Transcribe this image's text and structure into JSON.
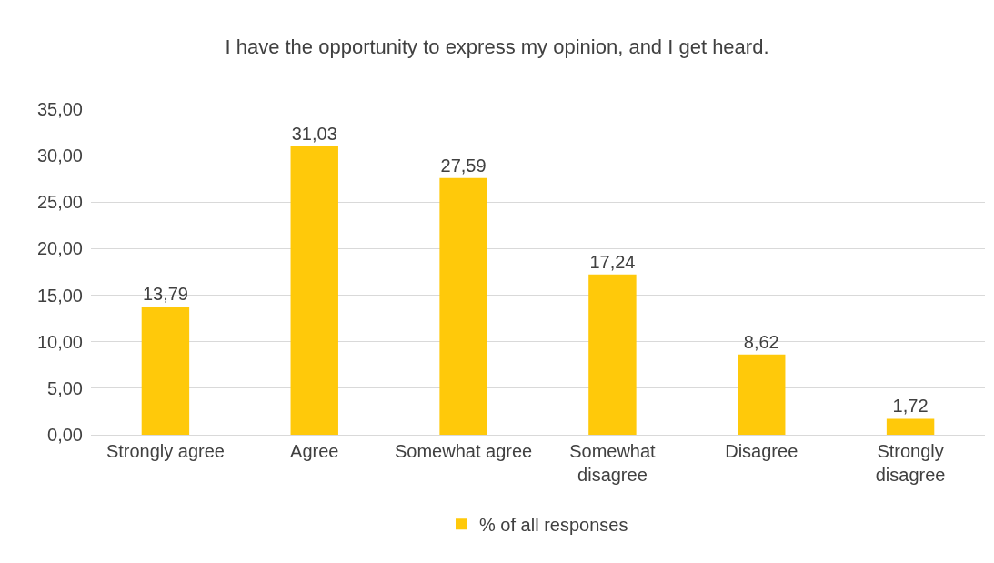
{
  "chart_data": {
    "type": "bar",
    "title": "I have the opportunity to express my opinion, and I get heard.",
    "categories": [
      "Strongly agree",
      "Agree",
      "Somewhat agree",
      "Somewhat disagree",
      "Disagree",
      "Strongly disagree"
    ],
    "series": [
      {
        "name": "% of all responses",
        "color": "#ffc90a",
        "values": [
          13.79,
          31.03,
          27.59,
          17.24,
          8.62,
          1.72
        ],
        "value_labels": [
          "13,79",
          "31,03",
          "27,59",
          "17,24",
          "8,62",
          "1,72"
        ]
      }
    ],
    "ylim": [
      0,
      35
    ],
    "yticks": [
      {
        "value": 0,
        "label": "0,00"
      },
      {
        "value": 5,
        "label": "5,00"
      },
      {
        "value": 10,
        "label": "10,00"
      },
      {
        "value": 15,
        "label": "15,00"
      },
      {
        "value": 20,
        "label": "20,00"
      },
      {
        "value": 25,
        "label": "25,00"
      },
      {
        "value": 30,
        "label": "30,00"
      },
      {
        "value": 35,
        "label": "35,00"
      }
    ],
    "grid": "y",
    "legend": "bottom"
  }
}
